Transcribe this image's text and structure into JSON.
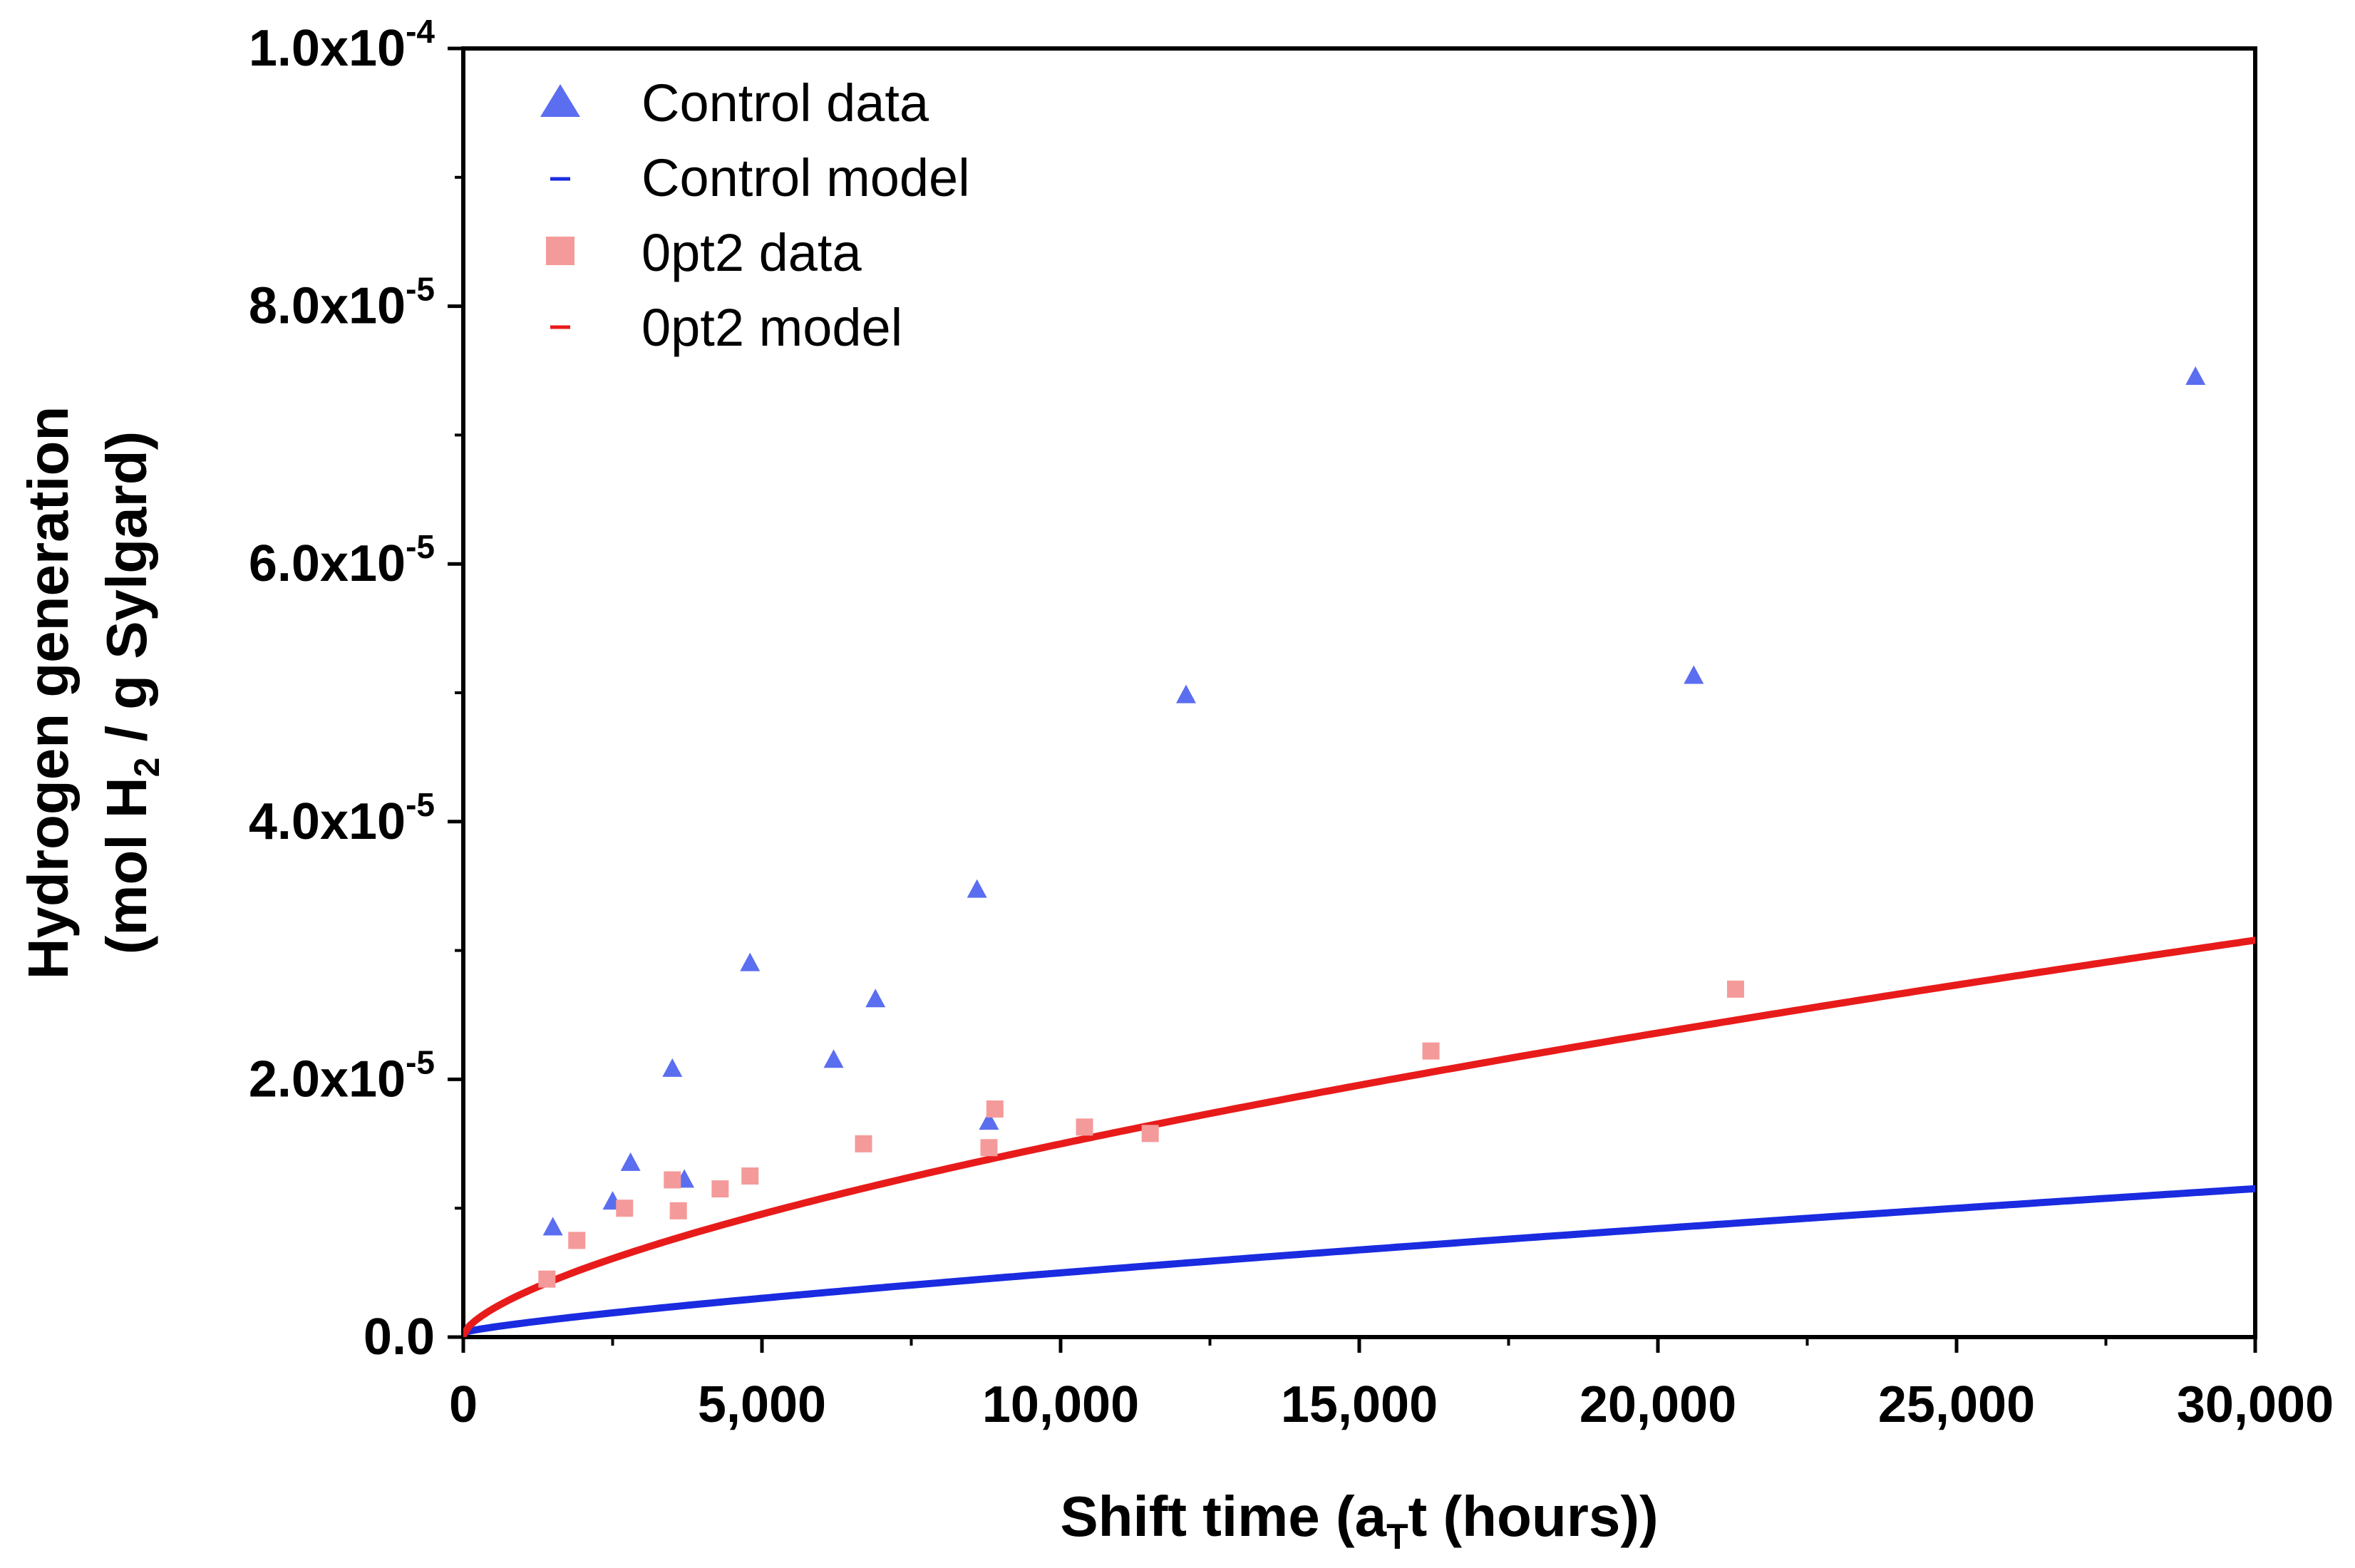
{
  "chart_data": {
    "type": "scatter",
    "title": "",
    "xlabel": {
      "prefix": "Shift time (a",
      "sub": "T",
      "suffix": "t (hours))"
    },
    "ylabel": {
      "line1": "Hydrogen generation",
      "line2_prefix": "(mol H",
      "line2_sub": "2",
      "line2_suffix": " / g Sylgard)"
    },
    "xlim": [
      0,
      30000
    ],
    "ylim": [
      0,
      0.0001
    ],
    "x_ticks": [
      {
        "value": 0,
        "label": "0"
      },
      {
        "value": 5000,
        "label": "5,000"
      },
      {
        "value": 10000,
        "label": "10,000"
      },
      {
        "value": 15000,
        "label": "15,000"
      },
      {
        "value": 20000,
        "label": "20,000"
      },
      {
        "value": 25000,
        "label": "25,000"
      },
      {
        "value": 30000,
        "label": "30,000"
      }
    ],
    "y_ticks": [
      {
        "value": 0,
        "mantissa": "0.0",
        "exp": ""
      },
      {
        "value": 2e-05,
        "mantissa": "2.0x10",
        "exp": "-5"
      },
      {
        "value": 4e-05,
        "mantissa": "4.0x10",
        "exp": "-5"
      },
      {
        "value": 6e-05,
        "mantissa": "6.0x10",
        "exp": "-5"
      },
      {
        "value": 8e-05,
        "mantissa": "8.0x10",
        "exp": "-5"
      },
      {
        "value": 0.0001,
        "mantissa": "1.0x10",
        "exp": "-4"
      }
    ],
    "legend_position": "top-left",
    "series": [
      {
        "name": "Control data",
        "kind": "markers",
        "marker": "triangle",
        "color": "#5B6EF0",
        "points": [
          [
            1500,
            8.5e-06
          ],
          [
            2500,
            1.05e-05
          ],
          [
            2800,
            1.35e-05
          ],
          [
            3500,
            2.08e-05
          ],
          [
            3700,
            1.22e-05
          ],
          [
            4800,
            2.9e-05
          ],
          [
            6200,
            2.15e-05
          ],
          [
            6900,
            2.62e-05
          ],
          [
            8600,
            3.47e-05
          ],
          [
            8800,
            1.67e-05
          ],
          [
            12100,
            4.98e-05
          ],
          [
            20600,
            5.13e-05
          ],
          [
            29000,
            7.45e-05
          ]
        ]
      },
      {
        "name": "Control model",
        "kind": "line",
        "color": "#1A2BE0",
        "model": {
          "a": 3.5e-07,
          "b": 2.925e-09,
          "n": 0.8
        }
      },
      {
        "name": "0pt2 data",
        "kind": "markers",
        "marker": "square",
        "color": "#F59A9A",
        "points": [
          [
            1400,
            4.5e-06
          ],
          [
            1900,
            7.5e-06
          ],
          [
            2700,
            1e-05
          ],
          [
            3500,
            1.22e-05
          ],
          [
            3600,
            9.8e-06
          ],
          [
            4300,
            1.15e-05
          ],
          [
            4800,
            1.25e-05
          ],
          [
            6700,
            1.5e-05
          ],
          [
            8800,
            1.47e-05
          ],
          [
            8900,
            1.77e-05
          ],
          [
            10400,
            1.63e-05
          ],
          [
            11500,
            1.58e-05
          ],
          [
            16200,
            2.22e-05
          ],
          [
            21300,
            2.7e-05
          ]
        ]
      },
      {
        "name": "0pt2 model",
        "kind": "line",
        "color": "#E81B1B",
        "model": {
          "a": 1.5e-07,
          "b": 3.4e-08,
          "n": 0.66
        }
      }
    ]
  }
}
